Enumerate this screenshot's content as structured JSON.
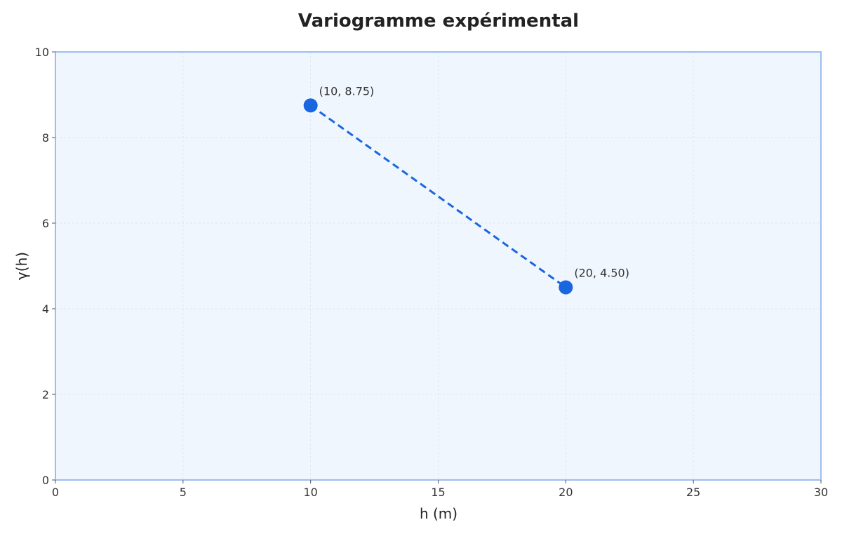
{
  "chart_data": {
    "type": "line",
    "title": "Variogramme expérimental",
    "xlabel": "h (m)",
    "ylabel": "γ(h)",
    "xlim": [
      0,
      30
    ],
    "ylim": [
      0,
      10
    ],
    "x_ticks": [
      0,
      5,
      10,
      15,
      20,
      25,
      30
    ],
    "y_ticks": [
      0,
      2,
      4,
      6,
      8,
      10
    ],
    "grid": true,
    "series": [
      {
        "x": [
          10,
          20
        ],
        "y": [
          8.75,
          4.5
        ],
        "point_labels": [
          "(10, 8.75)",
          "(20, 4.50)"
        ],
        "line_style": "dashed",
        "color": "#1a66e0"
      }
    ]
  },
  "colors": {
    "plot_background": "#f0f6fd",
    "plot_border": "#9dbdf0",
    "grid": "#dde6f2"
  }
}
